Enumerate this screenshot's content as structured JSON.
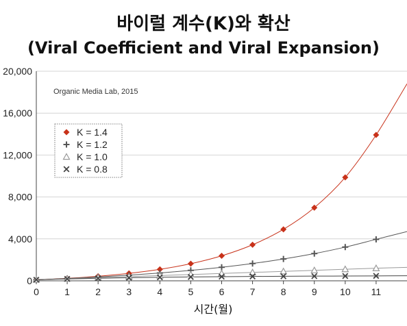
{
  "chart_data": {
    "type": "line",
    "title": "바이럴 계수(K)와 확산",
    "subtitle": "(Viral Coefficient and Viral Expansion)",
    "xlabel": "시간(월)",
    "ylabel": "",
    "annotation": "Organic Media Lab, 2015",
    "x": [
      0,
      1,
      2,
      3,
      4,
      5,
      6,
      7,
      8,
      9,
      10,
      11
    ],
    "x_tick_labels": [
      "0",
      "1",
      "2",
      "3",
      "4",
      "5",
      "6",
      "7",
      "8",
      "9",
      "10",
      "11"
    ],
    "xlim": [
      0,
      12
    ],
    "ylim": [
      0,
      20000
    ],
    "y_ticks": [
      0,
      4000,
      8000,
      12000,
      16000,
      20000
    ],
    "y_tick_labels": [
      "0",
      "4,000",
      "8,000",
      "12,000",
      "16,000",
      "20,000"
    ],
    "grid": "horizontal",
    "legend_position": "upper-left",
    "series": [
      {
        "name": "K = 1.4",
        "color": "#c8321a",
        "marker": "diamond",
        "values": [
          100,
          240,
          436,
          710,
          1094,
          1632,
          2385,
          3439,
          4914,
          6980,
          9872,
          13920
        ],
        "trend_end": 18800
      },
      {
        "name": "K = 1.2",
        "color": "#555555",
        "marker": "plus",
        "values": [
          100,
          220,
          364,
          537,
          744,
          993,
          1292,
          1650,
          2080,
          2596,
          3215,
          3958
        ],
        "trend_end": 4700
      },
      {
        "name": "K = 1.0",
        "color": "#999999",
        "marker": "triangle",
        "values": [
          100,
          200,
          300,
          400,
          500,
          600,
          700,
          800,
          900,
          1000,
          1100,
          1200
        ],
        "trend_end": 1280
      },
      {
        "name": "K = 0.8",
        "color": "#444444",
        "marker": "cross",
        "values": [
          100,
          180,
          244,
          295,
          336,
          369,
          395,
          416,
          433,
          446,
          457,
          466
        ],
        "trend_end": 480
      }
    ]
  }
}
